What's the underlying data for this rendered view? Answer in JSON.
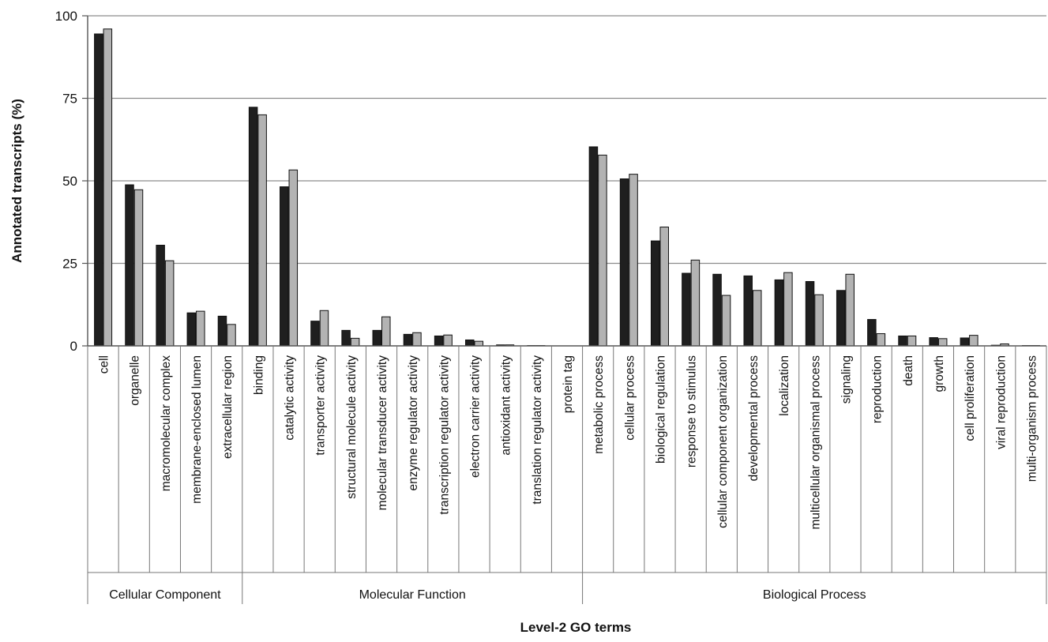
{
  "chart_data": {
    "type": "bar",
    "ylabel": "Annotated transcripts (%)",
    "xlabel": "Level-2 GO terms",
    "ylim": [
      0,
      100
    ],
    "yticks": [
      "0",
      "25",
      "50",
      "75",
      "100"
    ],
    "ytick_values": [
      0,
      25,
      50,
      75,
      100
    ],
    "grid": true,
    "categories": [
      "cell",
      "organelle",
      "macromolecular complex",
      "membrane-enclosed lumen",
      "extracellular region",
      "binding",
      "catalytic activity",
      "transporter activity",
      "structural molecule activity",
      "molecular transducer activity",
      "enzyme regulator activity",
      "transcription regulator activity",
      "electron carrier activity",
      "antioxidant activity",
      "translation regulator activity",
      "protein tag",
      "metabolic process",
      "cellular process",
      "biological regulation",
      "response to stimulus",
      "cellular component organization",
      "developmental process",
      "localization",
      "multicellular organismal process",
      "signaling",
      "reproduction",
      "death",
      "growth",
      "cell proliferation",
      "viral reproduction",
      "multi-organism process"
    ],
    "groups": [
      {
        "label": "Cellular Component",
        "count": 5
      },
      {
        "label": "Molecular Function",
        "count": 11
      },
      {
        "label": "Biological Process",
        "count": 15
      }
    ],
    "series": [
      {
        "color": "#1f1f1f",
        "values": [
          94.5,
          48.8,
          30.5,
          10.0,
          9.0,
          72.3,
          48.2,
          7.5,
          4.7,
          4.7,
          3.5,
          3.0,
          1.8,
          0.3,
          0.1,
          0,
          60.3,
          50.6,
          31.8,
          22.0,
          21.7,
          21.2,
          20.0,
          19.5,
          16.8,
          8.0,
          3.0,
          2.5,
          2.4,
          0.2,
          0.1
        ]
      },
      {
        "color": "#b3b3b3",
        "values": [
          96.0,
          47.3,
          25.8,
          10.5,
          6.5,
          70.0,
          53.3,
          10.7,
          2.3,
          8.8,
          4.0,
          3.3,
          1.4,
          0.3,
          0.1,
          0,
          57.8,
          52.0,
          36.0,
          26.0,
          15.3,
          16.8,
          22.2,
          15.5,
          21.7,
          3.7,
          3.0,
          2.2,
          3.2,
          0.6,
          0.1
        ]
      }
    ]
  }
}
